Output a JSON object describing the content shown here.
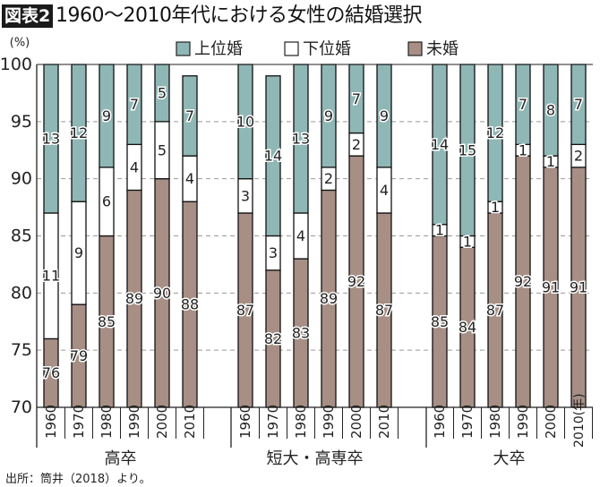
{
  "title_badge": "図表2",
  "title": "1960〜2010年代における女性の結婚選択",
  "footer": "出所：筒井（2018）より。",
  "chart_data": {
    "type": "bar",
    "stacked": true,
    "title": "1960〜2010年代における女性の結婚選択",
    "ylabel": "(%)",
    "ylim": [
      70,
      100
    ],
    "yticks": [
      70,
      75,
      80,
      85,
      90,
      95,
      100
    ],
    "grid": "horizontal dashed",
    "legend_position": "top",
    "year_unit": "(年)",
    "series": [
      {
        "name": "未婚",
        "color": "#a78f85",
        "position": "bottom"
      },
      {
        "name": "下位婚",
        "color": "#ffffff",
        "position": "middle"
      },
      {
        "name": "上位婚",
        "color": "#8fb7b5",
        "position": "top"
      }
    ],
    "legend_order": [
      "上位婚",
      "下位婚",
      "未婚"
    ],
    "groups": [
      {
        "name": "高卒",
        "categories": [
          "1960",
          "1970",
          "1980",
          "1990",
          "2000",
          "2010"
        ],
        "未婚": [
          76,
          79,
          85,
          89,
          90,
          88
        ],
        "下位婚": [
          11,
          9,
          6,
          4,
          5,
          4
        ],
        "上位婚": [
          13,
          12,
          9,
          7,
          5,
          7
        ]
      },
      {
        "name": "短大・高専卒",
        "categories": [
          "1960",
          "1970",
          "1980",
          "1990",
          "2000",
          "2010"
        ],
        "未婚": [
          87,
          82,
          83,
          89,
          92,
          87
        ],
        "下位婚": [
          3,
          3,
          4,
          2,
          2,
          4
        ],
        "上位婚": [
          10,
          14,
          13,
          9,
          7,
          9
        ]
      },
      {
        "name": "大卒",
        "categories": [
          "1960",
          "1970",
          "1980",
          "1990",
          "2000",
          "2010"
        ],
        "未婚": [
          85,
          84,
          87,
          92,
          91,
          91
        ],
        "下位婚": [
          1,
          1,
          1,
          1,
          1,
          2
        ],
        "上位婚": [
          14,
          15,
          12,
          7,
          8,
          7
        ]
      }
    ]
  }
}
